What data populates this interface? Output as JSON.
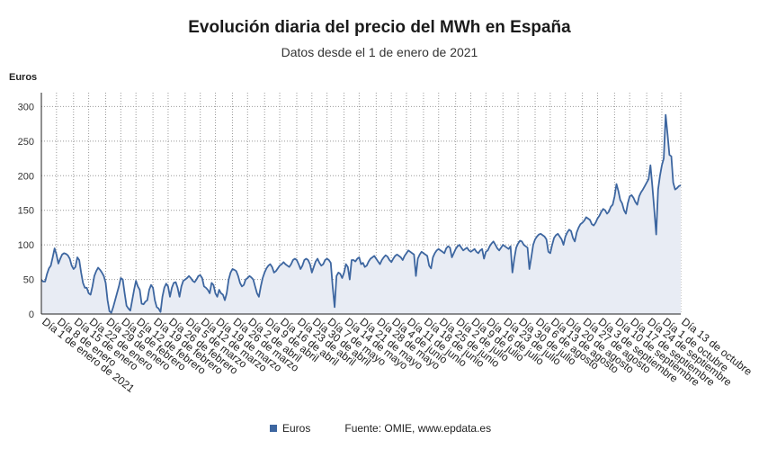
{
  "chart_data": {
    "type": "area",
    "title": "Evolución diaria del precio del MWh en España",
    "subtitle": "Datos desde el 1 de enero de 2021",
    "ylabel": "Euros",
    "xlabel": "",
    "ylim": [
      0,
      320
    ],
    "yticks": [
      0,
      50,
      100,
      150,
      200,
      250,
      300
    ],
    "grid": true,
    "legend_position": "bottom",
    "source": "Fuente: OMIE, www.epdata.es",
    "color": "#3d66a0",
    "fill_color": "#e8ecf4",
    "x_tick_labels": [
      "Día 1 de enero de 2021",
      "Día 8 de enero",
      "Día 15 de enero",
      "Día 22 de enero",
      "Día 29 de enero",
      "Día 5 de febrero",
      "Día 12 de febrero",
      "Día 19 de febrero",
      "Día 26 de febrero",
      "Día 5 de marzo",
      "Día 12 de marzo",
      "Día 19 de marzo",
      "Día 26 de marzo",
      "Día 2 de abril",
      "Día 9 de abril",
      "Día 16 de abril",
      "Día 23 de abril",
      "Día 30 de abril",
      "Día 7 de mayo",
      "Día 14 de mayo",
      "Día 21 de mayo",
      "Día 28 de mayo",
      "Día 4 de junio",
      "Día 11 de junio",
      "Día 18 de junio",
      "Día 25 de junio",
      "Día 2 de julio",
      "Día 9 de julio",
      "Día 16 de julio",
      "Día 23 de julio",
      "Día 30 de julio",
      "Día 6 de agosto",
      "Día 13 de agosto",
      "Día 20 de agosto",
      "Día 27 de agosto",
      "Día 3 de septiembre",
      "Día 10 de septiembre",
      "Día 17 de septiembre",
      "Día 24 de septiembre",
      "Día 1 de octubre",
      "Día 13 de octubre"
    ],
    "series": [
      {
        "name": "Euros",
        "values": [
          49,
          47,
          47,
          58,
          66,
          70,
          82,
          95,
          86,
          73,
          80,
          86,
          88,
          87,
          85,
          80,
          70,
          65,
          68,
          82,
          78,
          60,
          45,
          38,
          38,
          30,
          28,
          40,
          55,
          62,
          67,
          64,
          60,
          55,
          45,
          20,
          4,
          2,
          10,
          20,
          30,
          40,
          52,
          50,
          30,
          12,
          8,
          5,
          20,
          35,
          48,
          40,
          35,
          15,
          14,
          18,
          20,
          35,
          42,
          38,
          20,
          10,
          8,
          3,
          25,
          38,
          44,
          40,
          25,
          38,
          45,
          46,
          38,
          25,
          40,
          48,
          50,
          52,
          55,
          52,
          48,
          46,
          50,
          55,
          56,
          52,
          40,
          38,
          35,
          30,
          45,
          42,
          30,
          25,
          35,
          30,
          28,
          20,
          30,
          50,
          60,
          65,
          64,
          62,
          55,
          45,
          40,
          42,
          50,
          52,
          55,
          53,
          50,
          40,
          30,
          25,
          40,
          52,
          60,
          66,
          70,
          72,
          68,
          60,
          62,
          66,
          70,
          72,
          75,
          72,
          70,
          68,
          72,
          78,
          80,
          78,
          72,
          65,
          70,
          78,
          80,
          78,
          72,
          60,
          68,
          76,
          80,
          74,
          70,
          72,
          78,
          80,
          78,
          74,
          40,
          10,
          55,
          60,
          58,
          52,
          60,
          72,
          68,
          50,
          78,
          78,
          76,
          80,
          82,
          72,
          74,
          68,
          70,
          76,
          80,
          82,
          84,
          80,
          76,
          72,
          78,
          82,
          85,
          83,
          78,
          75,
          80,
          84,
          86,
          84,
          82,
          78,
          84,
          88,
          92,
          90,
          88,
          86,
          55,
          80,
          86,
          90,
          88,
          86,
          84,
          70,
          66,
          82,
          88,
          92,
          94,
          92,
          90,
          88,
          95,
          98,
          96,
          82,
          88,
          94,
          98,
          100,
          96,
          92,
          94,
          96,
          92,
          90,
          92,
          94,
          90,
          88,
          92,
          94,
          80,
          90,
          92,
          98,
          102,
          105,
          100,
          95,
          92,
          96,
          100,
          98,
          96,
          94,
          98,
          60,
          80,
          96,
          102,
          106,
          105,
          100,
          98,
          96,
          65,
          82,
          100,
          108,
          112,
          115,
          116,
          114,
          112,
          108,
          90,
          88,
          100,
          110,
          114,
          116,
          112,
          108,
          100,
          112,
          118,
          122,
          120,
          110,
          105,
          118,
          125,
          130,
          132,
          135,
          140,
          138,
          136,
          130,
          128,
          132,
          138,
          142,
          148,
          152,
          150,
          145,
          148,
          155,
          158,
          170,
          188,
          178,
          165,
          160,
          150,
          145,
          160,
          170,
          172,
          168,
          162,
          158,
          170,
          176,
          180,
          185,
          190,
          195,
          215,
          185,
          150,
          115,
          180,
          200,
          215,
          225,
          288,
          260,
          230,
          228,
          190,
          180,
          182,
          185,
          186
        ]
      }
    ]
  }
}
